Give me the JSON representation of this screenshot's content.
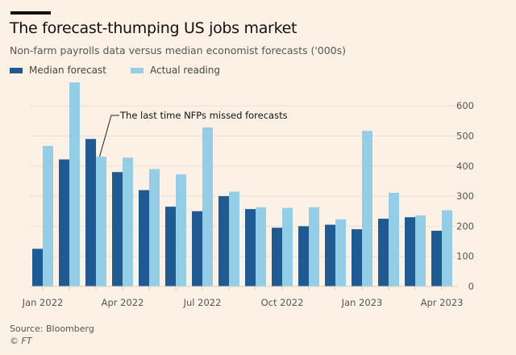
{
  "chart_data": {
    "type": "bar",
    "title": "The forecast-thumping US jobs market",
    "subtitle": "Non-farm payrolls data versus median economist forecasts ('000s)",
    "xlabel": "",
    "ylabel": "",
    "ylim": [
      0,
      650
    ],
    "yticks": [
      0,
      100,
      200,
      300,
      400,
      500,
      600
    ],
    "grid": true,
    "legend_position": "top-left",
    "categories": [
      "Jan 2022",
      "Feb 2022",
      "Mar 2022",
      "Apr 2022",
      "May 2022",
      "Jun 2022",
      "Jul 2022",
      "Aug 2022",
      "Sep 2022",
      "Oct 2022",
      "Nov 2022",
      "Dec 2022",
      "Jan 2023",
      "Feb 2023",
      "Mar 2023",
      "Apr 2023"
    ],
    "xtick_labels": [
      {
        "index": 0,
        "label": "Jan 2022"
      },
      {
        "index": 3,
        "label": "Apr 2022"
      },
      {
        "index": 6,
        "label": "Jul 2022"
      },
      {
        "index": 9,
        "label": "Oct 2022"
      },
      {
        "index": 12,
        "label": "Jan 2023"
      },
      {
        "index": 15,
        "label": "Apr 2023"
      }
    ],
    "series": [
      {
        "name": "Median forecast",
        "color": "#1f5a92",
        "values": [
          125,
          422,
          490,
          380,
          320,
          265,
          250,
          300,
          257,
          195,
          200,
          205,
          190,
          225,
          230,
          185
        ]
      },
      {
        "name": "Actual reading",
        "color": "#93cde6",
        "values": [
          467,
          678,
          431,
          428,
          390,
          372,
          528,
          315,
          263,
          261,
          263,
          223,
          517,
          311,
          236,
          253
        ]
      }
    ],
    "annotations": [
      {
        "text": "The last time NFPs missed forecasts",
        "category": "Mar 2022",
        "series": "Actual reading"
      }
    ]
  },
  "footer": {
    "source": "Source: Bloomberg",
    "copyright": "© FT"
  }
}
